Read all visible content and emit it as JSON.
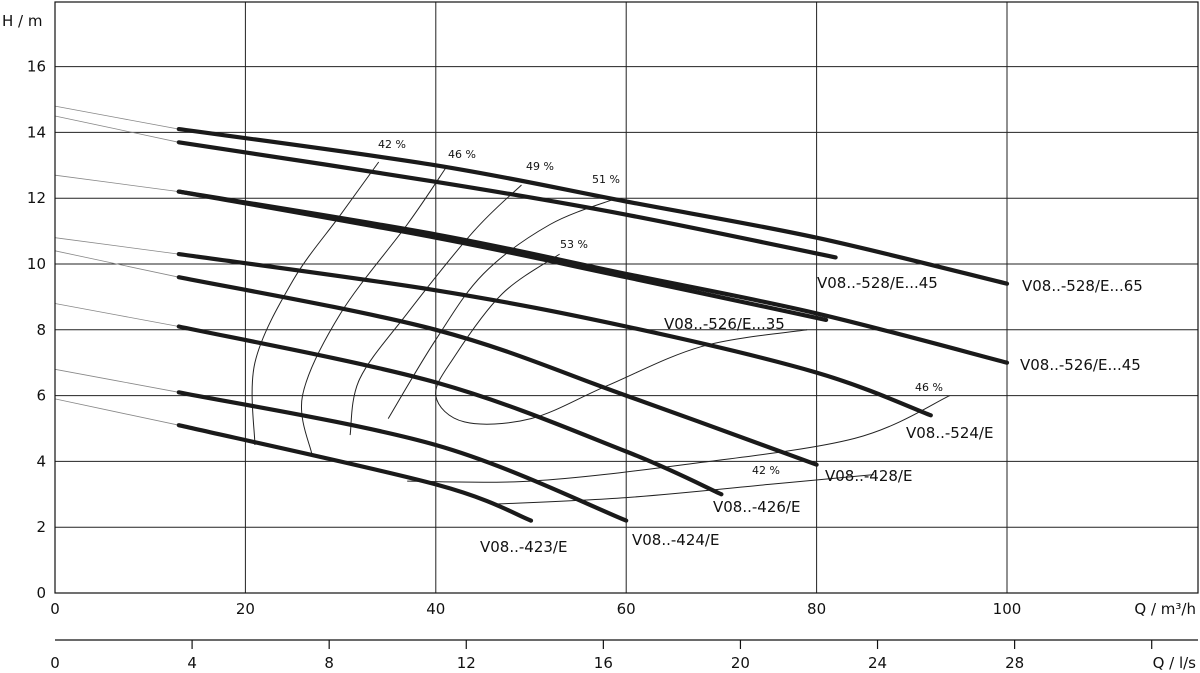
{
  "chart_data": {
    "type": "line",
    "xlabel": "Q / m³/h",
    "ylabel": "H / m",
    "xlabel_secondary": "Q / l/s",
    "xlim": [
      0,
      120
    ],
    "ylim": [
      0,
      18
    ],
    "x_ticks": [
      "0",
      "20",
      "40",
      "60",
      "80",
      "100"
    ],
    "y_ticks": [
      "0",
      "2",
      "4",
      "6",
      "8",
      "10",
      "12",
      "14",
      "16"
    ],
    "x_ticks_secondary": [
      "0",
      "4",
      "8",
      "12",
      "16",
      "20",
      "24",
      "28"
    ],
    "grid": true,
    "series": [
      {
        "name": "V08..-528/E...65",
        "x": [
          13,
          40,
          60,
          80,
          100
        ],
        "y": [
          14.1,
          13.0,
          11.9,
          10.8,
          9.4
        ]
      },
      {
        "name": "V08..-528/E...45",
        "x": [
          13,
          40,
          60,
          82
        ],
        "y": [
          13.7,
          12.5,
          11.5,
          10.2
        ]
      },
      {
        "name": "V08..-526/E...45",
        "x": [
          13,
          40,
          60,
          80,
          100
        ],
        "y": [
          12.2,
          10.9,
          9.7,
          8.5,
          7.0
        ]
      },
      {
        "name": "V08..-526/E...35",
        "x": [
          13,
          40,
          60,
          81
        ],
        "y": [
          12.2,
          10.8,
          9.6,
          8.3
        ]
      },
      {
        "name": "V08..-524/E",
        "x": [
          13,
          40,
          60,
          80,
          92
        ],
        "y": [
          10.3,
          9.2,
          8.1,
          6.7,
          5.4
        ]
      },
      {
        "name": "V08..-428/E",
        "x": [
          13,
          40,
          60,
          80
        ],
        "y": [
          9.6,
          8.0,
          6.0,
          3.9
        ]
      },
      {
        "name": "V08..-426/E",
        "x": [
          13,
          40,
          60,
          70
        ],
        "y": [
          8.1,
          6.4,
          4.3,
          3.0
        ]
      },
      {
        "name": "V08..-424/E",
        "x": [
          13,
          40,
          60
        ],
        "y": [
          6.1,
          4.5,
          2.2
        ]
      },
      {
        "name": "V08..-423/E",
        "x": [
          13,
          40,
          50
        ],
        "y": [
          5.1,
          3.3,
          2.2
        ]
      }
    ],
    "annotations": [
      "42 %",
      "46 %",
      "49 %",
      "51 %",
      "53 %",
      "46 %",
      "42 %"
    ]
  }
}
